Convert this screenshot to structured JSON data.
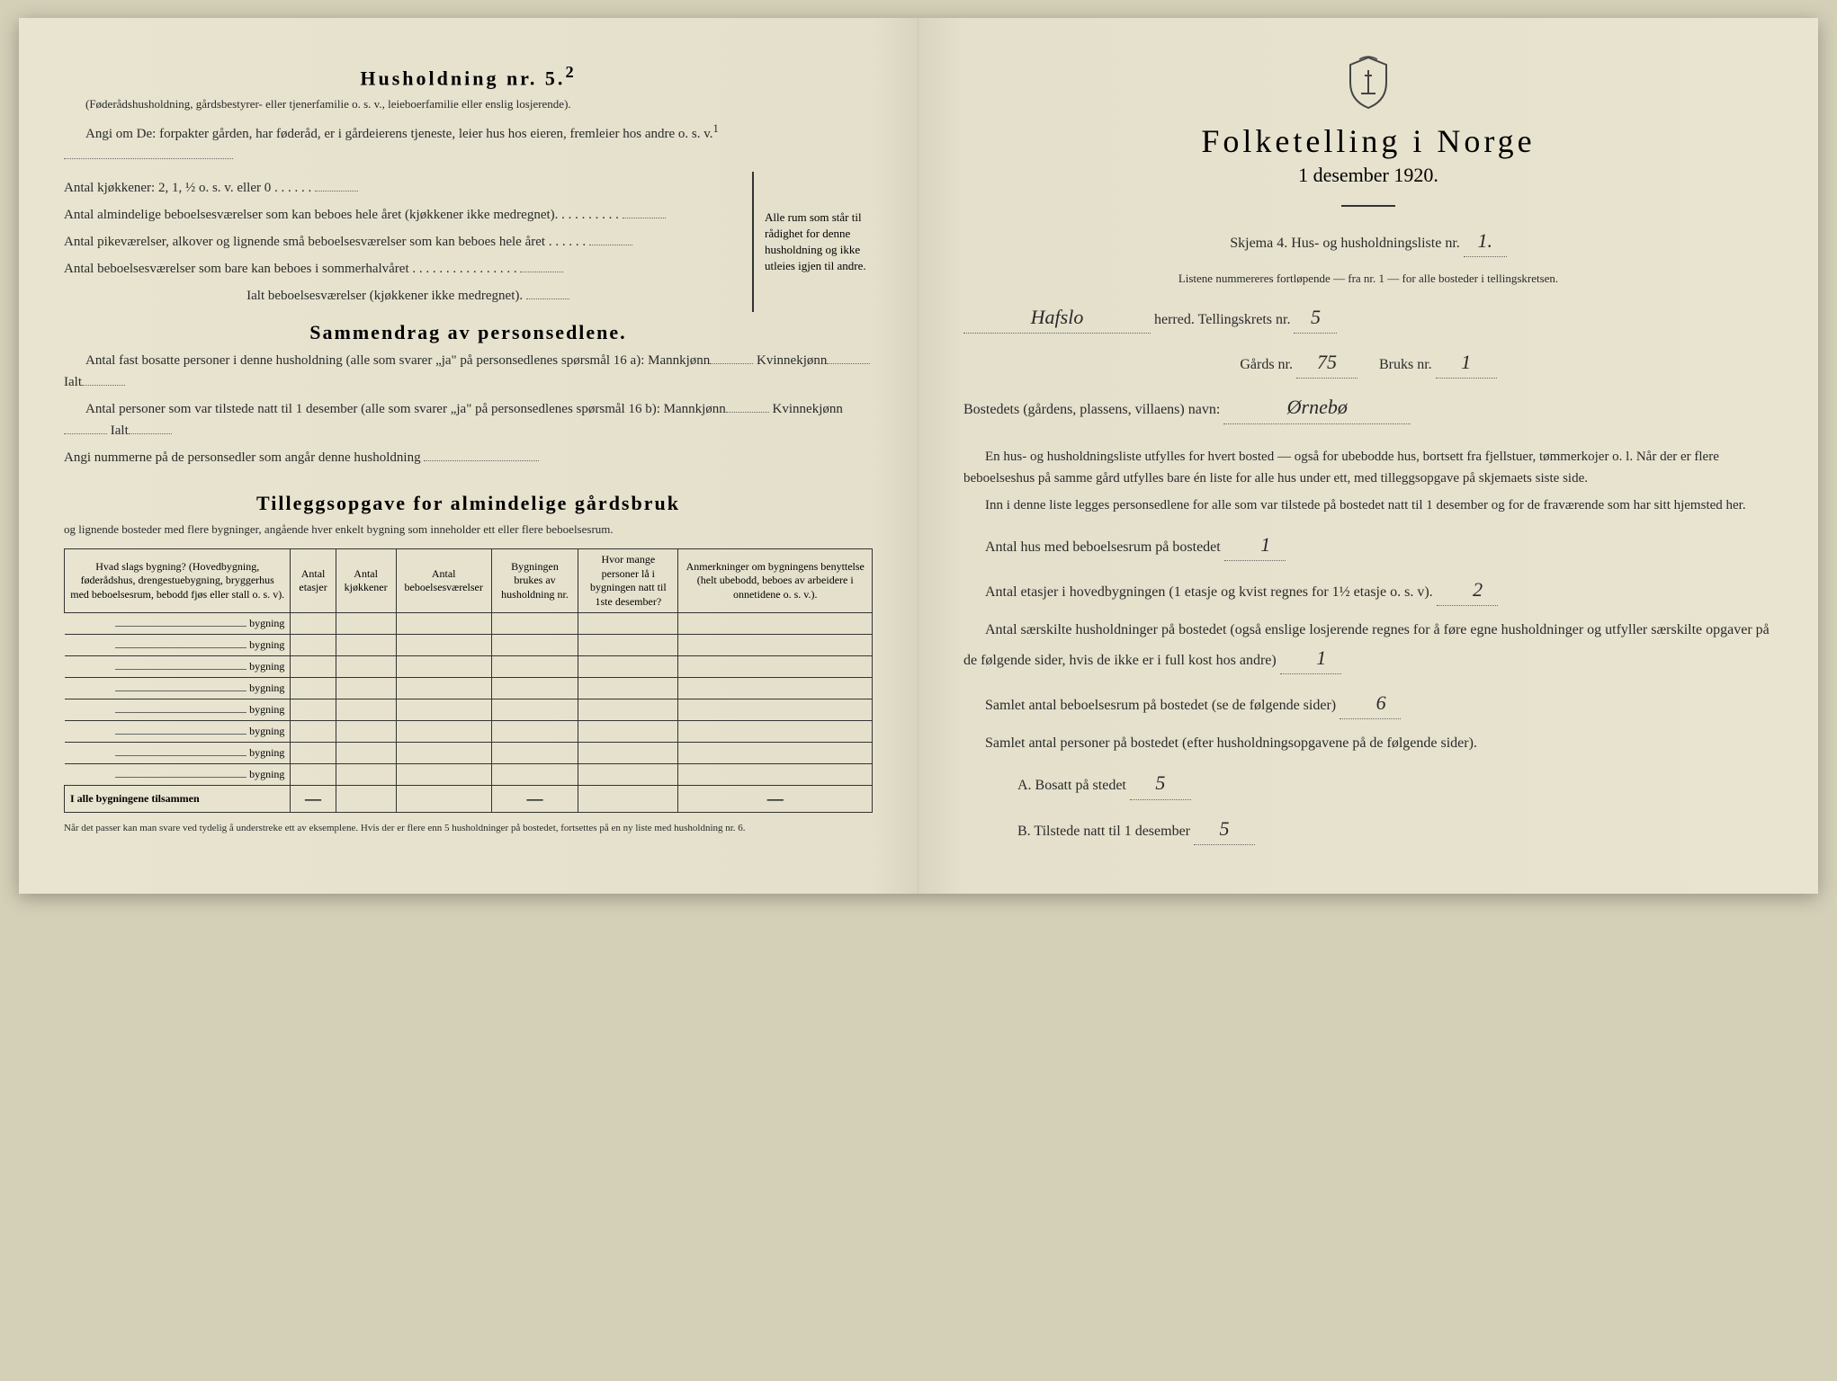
{
  "left": {
    "h5_title": "Husholdning nr. 5.",
    "h5_sup": "2",
    "h5_sub": "(Føderådshusholdning, gårdsbestyrer- eller tjenerfamilie o. s. v., leieboerfamilie eller enslig losjerende).",
    "h5_angi": "Angi om De: forpakter gården, har føderåd, er i gårdeierens tjeneste, leier hus hos eieren, fremleier hos andre o. s. v.",
    "h5_sup1": "1",
    "kj_line": "Antal kjøkkener: 2, 1, ½ o. s. v. eller 0",
    "rooms": [
      "Antal almindelige beboelsesværelser som kan beboes hele året (kjøkkener ikke medregnet).",
      "Antal pikeværelser, alkover og lignende små beboelsesværelser som kan beboes hele året",
      "Antal beboelsesværelser som bare kan beboes i sommerhalvåret"
    ],
    "ialt": "Ialt beboelsesværelser (kjøkkener ikke medregnet).",
    "brace_note": "Alle rum som står til rådighet for denne husholdning og ikke utleies igjen til andre.",
    "sammen_title": "Sammendrag av personsedlene.",
    "sammen_1a": "Antal fast bosatte personer i denne husholdning (alle som svarer „ja\" på personsedlenes spørsmål 16 a): Mannkjønn",
    "kvinne": "Kvinnekjønn",
    "ialt_label": "Ialt",
    "sammen_1b": "Antal personer som var tilstede natt til 1 desember (alle som svarer „ja\" på personsedlenes spørsmål 16 b): Mannkjønn",
    "angi_num": "Angi nummerne på de personsedler som angår denne husholdning",
    "tillegg_title": "Tilleggsopgave for almindelige gårdsbruk",
    "tillegg_sub": "og lignende bosteder med flere bygninger, angående hver enkelt bygning som inneholder ett eller flere beboelsesrum.",
    "table_headers": [
      "Hvad slags bygning?\n(Hovedbygning, føderådshus, drengestuebygning, bryggerhus med beboelsesrum, bebodd fjøs eller stall o. s. v).",
      "Antal etasjer",
      "Antal kjøkkener",
      "Antal beboelsesværelser",
      "Bygningen brukes av husholdning nr.",
      "Hvor mange personer lå i bygningen natt til 1ste desember?",
      "Anmerkninger om bygningens benyttelse (helt ubebodd, beboes av arbeidere i onnetidene o. s. v.)."
    ],
    "bygning_label": "bygning",
    "bygning_rows": 8,
    "sum_label": "I alle bygningene tilsammen",
    "footnote": "Når det passer kan man svare ved tydelig å understreke ett av eksemplene.\nHvis der er flere enn 5 husholdninger på bostedet, fortsettes på en ny liste med husholdning nr. 6."
  },
  "right": {
    "title": "Folketelling i Norge",
    "date": "1 desember 1920.",
    "skjema": "Skjema 4. Hus- og husholdningsliste nr.",
    "skjema_val": "1.",
    "listene": "Listene nummereres fortløpende — fra nr. 1 — for alle bosteder i tellingskretsen.",
    "herred_val": "Hafslo",
    "herred_label": "herred. Tellingskrets nr.",
    "krets_val": "5",
    "gards_label": "Gårds nr.",
    "gards_val": "75",
    "bruks_label": "Bruks nr.",
    "bruks_val": "1",
    "bosted_label": "Bostedets (gårdens, plassens, villaens) navn:",
    "bosted_val": "Ørnebø",
    "para1": "En hus- og husholdningsliste utfylles for hvert bosted — også for ubebodde hus, bortsett fra fjellstuer, tømmerkojer o. l. Når der er flere beboelseshus på samme gård utfylles bare én liste for alle hus under ett, med tilleggsopgave på skjemaets siste side.",
    "para2": "Inn i denne liste legges personsedlene for alle som var tilstede på bostedet natt til 1 desember og for de fraværende som har sitt hjemsted her.",
    "antal_hus": "Antal hus med beboelsesrum på bostedet",
    "antal_hus_val": "1",
    "antal_etasjer": "Antal etasjer i hovedbygningen (1 etasje og kvist regnes for 1½ etasje o. s. v).",
    "antal_etasjer_val": "2",
    "antal_hush": "Antal særskilte husholdninger på bostedet (også enslige losjerende regnes for å føre egne husholdninger og utfyller særskilte opgaver på de følgende sider, hvis de ikke er i full kost hos andre)",
    "antal_hush_val": "1",
    "samlet_rum": "Samlet antal beboelsesrum på bostedet (se de følgende sider)",
    "samlet_rum_val": "6",
    "samlet_pers": "Samlet antal personer på bostedet (efter husholdningsopgavene på de følgende sider).",
    "a_label": "A. Bosatt på stedet",
    "a_val": "5",
    "b_label": "B. Tilstede natt til 1 desember",
    "b_val": "5"
  }
}
